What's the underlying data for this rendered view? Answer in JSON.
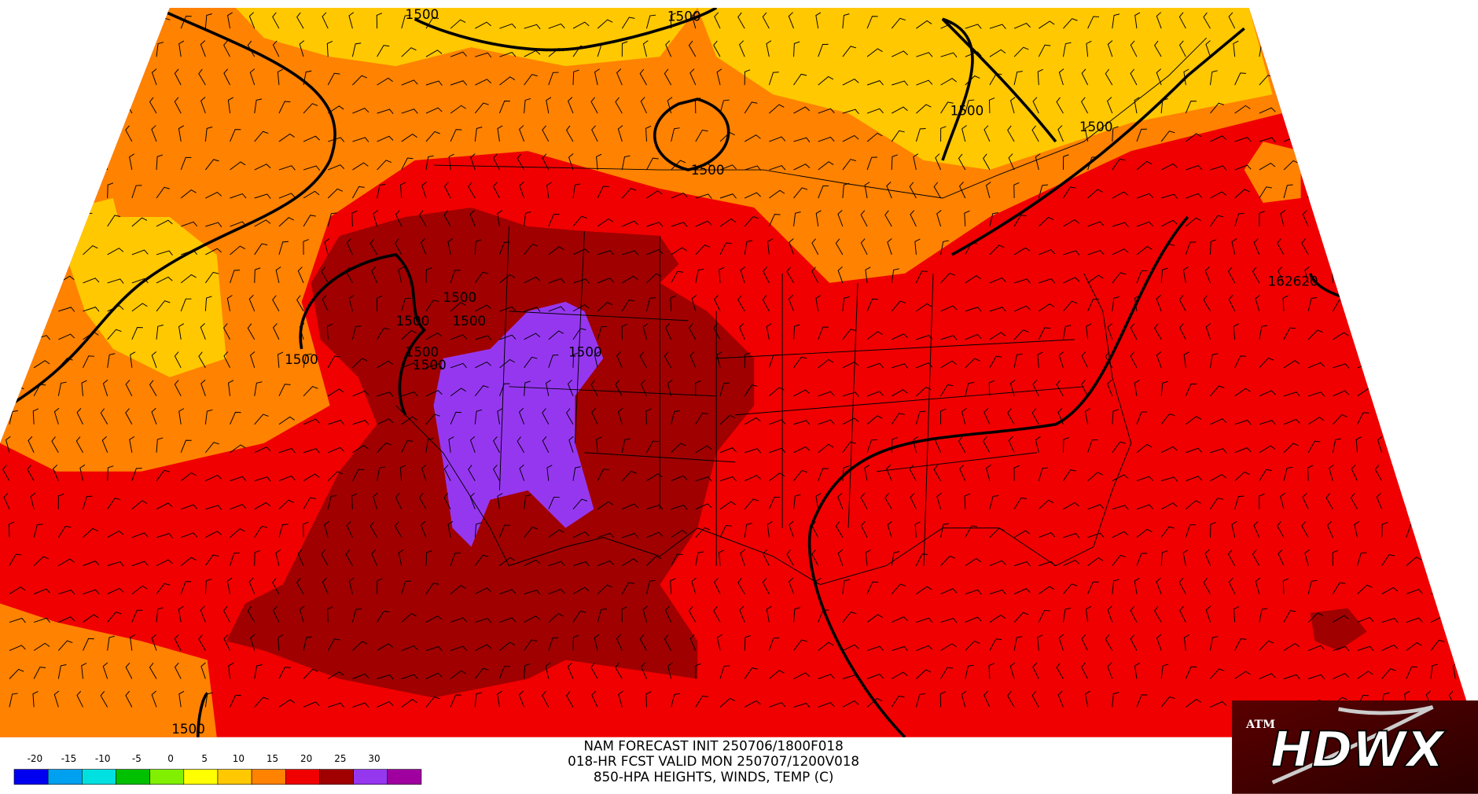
{
  "header": {
    "lines": [
      "NAM FORECAST INIT 250706/1800F018",
      "018-HR FCST VALID MON 250707/1200V018",
      "850-HPA HEIGHTS, WINDS, TEMP (C)"
    ]
  },
  "legend": {
    "ticks": [
      -20,
      -15,
      -10,
      -5,
      0,
      5,
      10,
      15,
      20,
      25,
      30
    ],
    "colors": [
      "#0000f0",
      "#00a0f0",
      "#00e0e0",
      "#00c000",
      "#80f000",
      "#ffff00",
      "#ffc800",
      "#ff8200",
      "#f00000",
      "#a00000",
      "#9637f0",
      "#a000a0"
    ]
  },
  "contour_labels": [
    "1500",
    "1500",
    "1500",
    "1500",
    "1500",
    "1500",
    "1500",
    "1500",
    "1500",
    "1500",
    "1500",
    "1500",
    "1500",
    "162620"
  ],
  "logo": {
    "text": "HDWX",
    "mark": "ATM"
  }
}
